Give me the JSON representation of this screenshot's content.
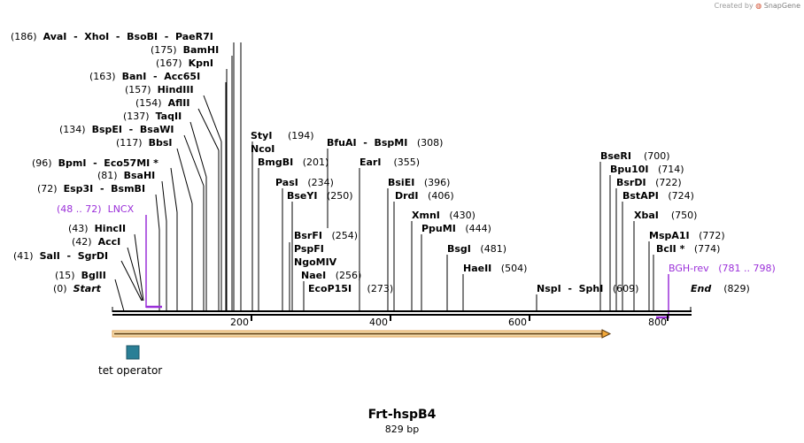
{
  "credit": {
    "prefix": "Created by",
    "brand": "SnapGene"
  },
  "plasmid": {
    "name": "Frt-hspB4",
    "length": "829 bp"
  },
  "axis_ticks": [
    "200",
    "400",
    "600",
    "800"
  ],
  "features": {
    "tet_operator": "tet operator"
  },
  "labels": {
    "avai": {
      "pos": "(186)",
      "name": "AvaI",
      "rest": "  -  XhoI  -  BsoBI  -  PaeR7I"
    },
    "bamhi": {
      "pos": "(175)",
      "name": "BamHI"
    },
    "kpni": {
      "pos": "(167)",
      "name": "KpnI"
    },
    "bani": {
      "pos": "(163)",
      "name": "BanI",
      "rest": "  -  Acc65I"
    },
    "hindiii": {
      "pos": "(157)",
      "name": "HindIII"
    },
    "aflii": {
      "pos": "(154)",
      "name": "AflII"
    },
    "taqii": {
      "pos": "(137)",
      "name": "TaqII"
    },
    "bspei": {
      "pos": "(134)",
      "name": "BspEI",
      "rest": "  -  BsaWI"
    },
    "bbsi": {
      "pos": "(117)",
      "name": "BbsI"
    },
    "bpmi": {
      "pos": "(96)",
      "name": "BpmI",
      "rest": "  -  Eco57MI *"
    },
    "bsahi": {
      "pos": "(81)",
      "name": "BsaHI"
    },
    "esp3i": {
      "pos": "(72)",
      "name": "Esp3I",
      "rest": "  -  BsmBI"
    },
    "lncx": {
      "pos": "(48 .. 72)",
      "name": "LNCX"
    },
    "hincii": {
      "pos": "(43)",
      "name": "HincII"
    },
    "acci": {
      "pos": "(42)",
      "name": "AccI"
    },
    "sali": {
      "pos": "(41)",
      "name": "SalI",
      "rest": "  -  SgrDI"
    },
    "bglii": {
      "pos": "(15)",
      "name": "BglII"
    },
    "start": {
      "pos": "(0)",
      "name": "Start"
    },
    "styi": {
      "name": "StyI",
      "pos": "(194)"
    },
    "ncoi": {
      "name": "NcoI"
    },
    "bmgbi": {
      "name": "BmgBI",
      "pos": "(201)"
    },
    "pasi": {
      "name": "PasI",
      "pos": "(234)"
    },
    "bseyi": {
      "name": "BseYI",
      "pos": "(250)"
    },
    "bsrfi": {
      "name": "BsrFI",
      "pos": "(254)"
    },
    "pspfi": {
      "name": "PspFI"
    },
    "ngomiv": {
      "name": "NgoMIV"
    },
    "naei": {
      "name": "NaeI",
      "pos": "(256)"
    },
    "ecop15i": {
      "name": "EcoP15I",
      "pos": "(273)"
    },
    "bfuai": {
      "name": "BfuAI",
      "rest": "  -  BspMI",
      "pos": "(308)"
    },
    "eari": {
      "name": "EarI",
      "pos": "(355)"
    },
    "bsiei": {
      "name": "BsiEI",
      "pos": "(396)"
    },
    "drdi": {
      "name": "DrdI",
      "pos": "(406)"
    },
    "xmni": {
      "name": "XmnI",
      "pos": "(430)"
    },
    "ppumi": {
      "name": "PpuMI",
      "pos": "(444)"
    },
    "bsgi": {
      "name": "BsgI",
      "pos": "(481)"
    },
    "haeii": {
      "name": "HaeII",
      "pos": "(504)"
    },
    "nspi": {
      "name": "NspI",
      "rest": "  -  SphI",
      "pos": "(609)"
    },
    "bseri": {
      "name": "BseRI",
      "pos": "(700)"
    },
    "bpu10i": {
      "name": "Bpu10I",
      "pos": "(714)"
    },
    "bsrdi": {
      "name": "BsrDI",
      "pos": "(722)"
    },
    "bstapi": {
      "name": "BstAPI",
      "pos": "(724)"
    },
    "xbai": {
      "name": "XbaI",
      "pos": "(750)"
    },
    "mspa1i": {
      "name": "MspA1I",
      "pos": "(772)"
    },
    "bcli": {
      "name": "BclI *",
      "pos": "(774)"
    },
    "bghrev": {
      "name": "BGH-rev",
      "pos": "(781 .. 798)"
    },
    "end": {
      "name": "End",
      "pos": "(829)"
    }
  },
  "colors": {
    "primer": "#9b30d9",
    "orf_fill": "#f4a93a",
    "orf_stroke": "#b5762a",
    "operator": "#2a7f96"
  }
}
